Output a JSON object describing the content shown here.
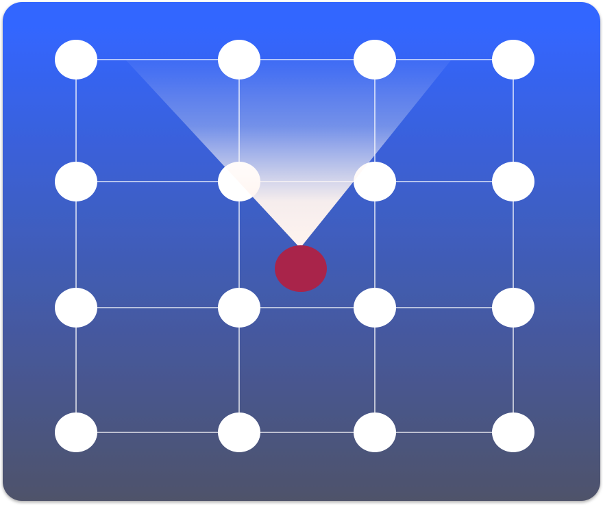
{
  "colors": {
    "panel_top": "#3366ff",
    "panel_bottom": "#4f526a",
    "grid_line": "#ffffff",
    "node_fill": "#ffffff",
    "agent_fill": "#a9244a",
    "view_cone_top": "#ffffff",
    "view_cone_tip": "#fff4ef"
  },
  "grid": {
    "rows": 4,
    "cols": 4
  },
  "agent": {
    "icon": "agent-dot"
  },
  "view_cone": {
    "icon": "field-of-view-cone"
  }
}
